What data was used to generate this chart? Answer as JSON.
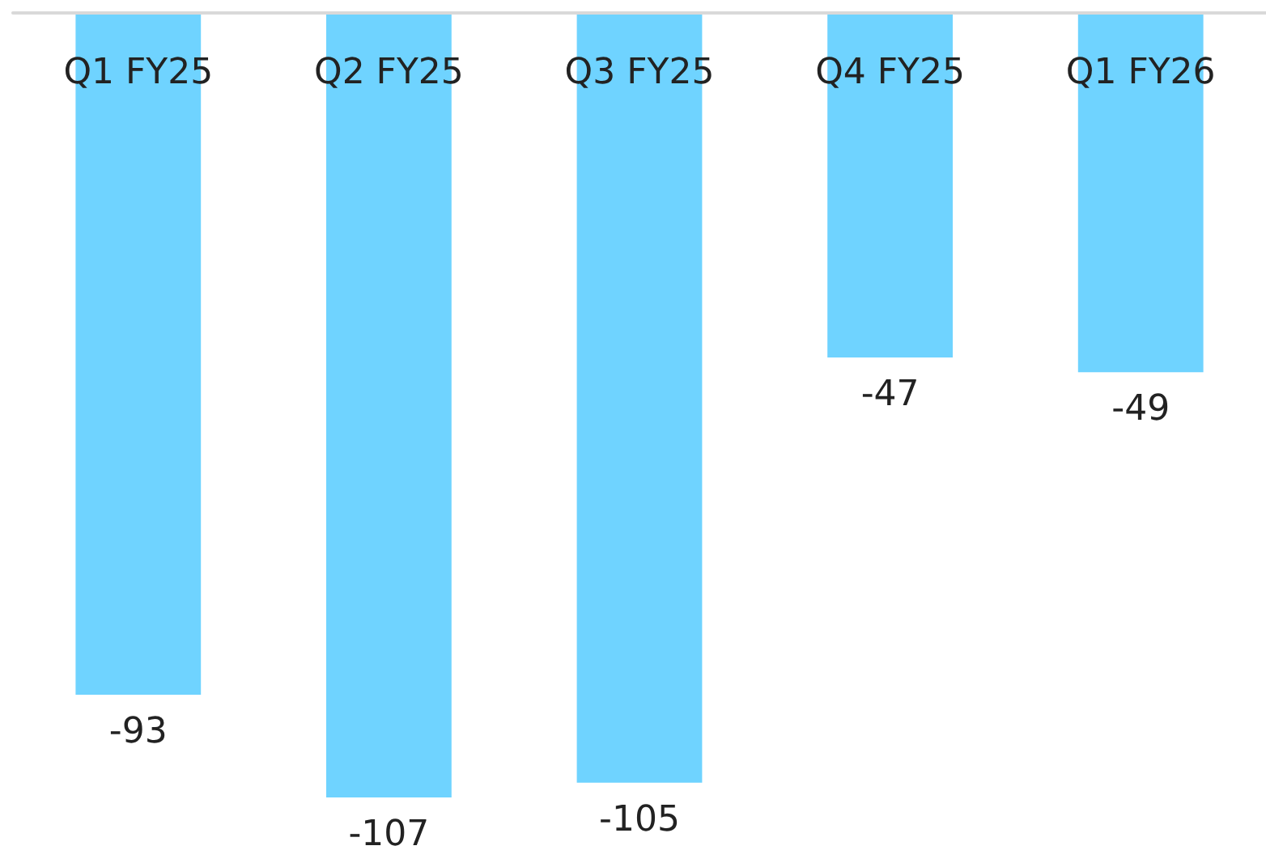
{
  "chart_data": {
    "type": "bar",
    "categories": [
      "Q1 FY25",
      "Q2 FY25",
      "Q3 FY25",
      "Q4 FY25",
      "Q1 FY26"
    ],
    "values": [
      -93,
      -107,
      -105,
      -47,
      -49
    ],
    "color": "#6fd3ff",
    "data_labels": true
  }
}
